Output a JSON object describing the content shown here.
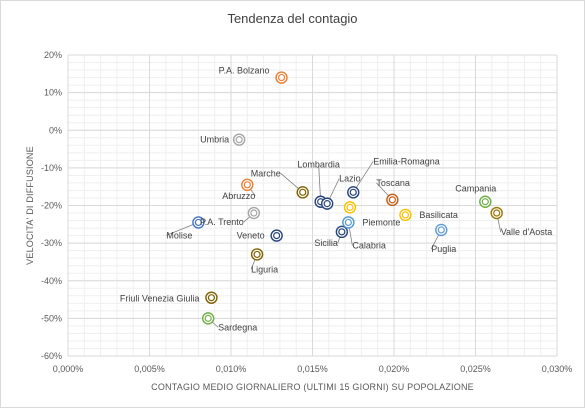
{
  "chart_data": {
    "type": "scatter",
    "title": "Tendenza del contagio",
    "xlabel": "CONTAGIO MEDIO GIORNALIERO (ULTIMI 15 GIORNI) SU POPOLAZIONE",
    "ylabel": "VELOCITA' DI DIFFUSIONE",
    "xlim": [
      0.0,
      0.03
    ],
    "ylim": [
      -60,
      20
    ],
    "x_ticks": [
      "0,000%",
      "0,005%",
      "0,010%",
      "0,015%",
      "0,020%",
      "0,025%",
      "0,030%"
    ],
    "y_ticks": [
      "20%",
      "10%",
      "0%",
      "-10%",
      "-20%",
      "-30%",
      "-40%",
      "-50%",
      "-60%"
    ],
    "x_tick_values": [
      0.0,
      0.005,
      0.01,
      0.015,
      0.02,
      0.025,
      0.03
    ],
    "y_tick_values": [
      20,
      10,
      0,
      -10,
      -20,
      -30,
      -40,
      -50,
      -60
    ],
    "grid": true,
    "points": [
      {
        "label": "P.A. Bolzano",
        "x": 0.0131,
        "y": 14,
        "color": "#ed7d31",
        "lx": -12,
        "ly": -4,
        "anchor": "end",
        "leader": false
      },
      {
        "label": "Umbria",
        "x": 0.0105,
        "y": -2.5,
        "color": "#a5a5a5",
        "lx": -10,
        "ly": 3,
        "anchor": "end",
        "leader": false
      },
      {
        "label": "Abruzzo",
        "x": 0.011,
        "y": -14.5,
        "color": "#ed7d31",
        "lx": 8,
        "ly": 14,
        "anchor": "end",
        "leader": true
      },
      {
        "label": "Marche",
        "x": 0.0144,
        "y": -16.5,
        "color": "#7f6000",
        "lx": -22,
        "ly": -16,
        "anchor": "end",
        "leader": true
      },
      {
        "label": "Lombardia",
        "x": 0.0155,
        "y": -19,
        "color": "#264478",
        "lx": -2,
        "ly": -34,
        "anchor": "middle",
        "leader": true
      },
      {
        "label": "Lazio",
        "x": 0.0159,
        "y": -19.5,
        "color": "#264478",
        "lx": 12,
        "ly": -22,
        "anchor": "start",
        "leader": true
      },
      {
        "label": "Emilia-Romagna",
        "x": 0.0175,
        "y": -16.5,
        "color": "#264478",
        "lx": 20,
        "ly": -28,
        "anchor": "start",
        "leader": true
      },
      {
        "label": "Toscana",
        "x": 0.0199,
        "y": -18.5,
        "color": "#c55a11",
        "lx": -16,
        "ly": -14,
        "anchor": "start",
        "leader": true
      },
      {
        "label": "Campania",
        "x": 0.0256,
        "y": -19,
        "color": "#70ad47",
        "lx": -30,
        "ly": -10,
        "anchor": "start",
        "leader": false
      },
      {
        "label": "Basilicata",
        "x": 0.0207,
        "y": -22.5,
        "color": "#ffc000",
        "lx": 14,
        "ly": 3,
        "anchor": "start",
        "leader": false
      },
      {
        "label": "Valle d'Aosta",
        "x": 0.0263,
        "y": -22,
        "color": "#997300",
        "lx": 4,
        "ly": 22,
        "anchor": "start",
        "leader": true
      },
      {
        "label": "P.A. Trento",
        "x": 0.0114,
        "y": -22,
        "color": "#a5a5a5",
        "lx": -10,
        "ly": 12,
        "anchor": "end",
        "leader": true
      },
      {
        "label": "Piemonte",
        "x": 0.0172,
        "y": -24.5,
        "color": "#5b9bd5",
        "lx": 14,
        "ly": 3,
        "anchor": "start",
        "leader": false
      },
      {
        "label": "Puglia",
        "x": 0.0229,
        "y": -26.5,
        "color": "#5b9bd5",
        "lx": -10,
        "ly": 22,
        "anchor": "start",
        "leader": true
      },
      {
        "label": "Molise",
        "x": 0.008,
        "y": -24.5,
        "color": "#4472c4",
        "lx": -32,
        "ly": 16,
        "anchor": "start",
        "leader": true
      },
      {
        "label": "Veneto",
        "x": 0.0128,
        "y": -28,
        "color": "#264478",
        "lx": -12,
        "ly": 3,
        "anchor": "end",
        "leader": false
      },
      {
        "label": "Sicilia",
        "x": 0.0168,
        "y": -27,
        "color": "#264478",
        "lx": -4,
        "ly": 14,
        "anchor": "end",
        "leader": true
      },
      {
        "label": "Calabria",
        "x": 0.0172,
        "y": -24.5,
        "color": "#5b9bd5",
        "lx": 4,
        "ly": 26,
        "anchor": "start",
        "leader": true
      },
      {
        "label": "Emilia-Romagna-dot",
        "x": 0.0173,
        "y": -20.5,
        "color": "#ffc000",
        "lx": 0,
        "ly": 0,
        "anchor": "start",
        "leader": false,
        "nolabel": true
      },
      {
        "label": "Liguria",
        "x": 0.0116,
        "y": -33,
        "color": "#7f6000",
        "lx": -6,
        "ly": 18,
        "anchor": "start",
        "leader": true
      },
      {
        "label": "Friuli Venezia Giulia",
        "x": 0.0088,
        "y": -44.5,
        "color": "#7f6000",
        "lx": -12,
        "ly": 4,
        "anchor": "end",
        "leader": false
      },
      {
        "label": "Sardegna",
        "x": 0.0086,
        "y": -50,
        "color": "#70ad47",
        "lx": 10,
        "ly": 12,
        "anchor": "start",
        "leader": true
      }
    ]
  }
}
